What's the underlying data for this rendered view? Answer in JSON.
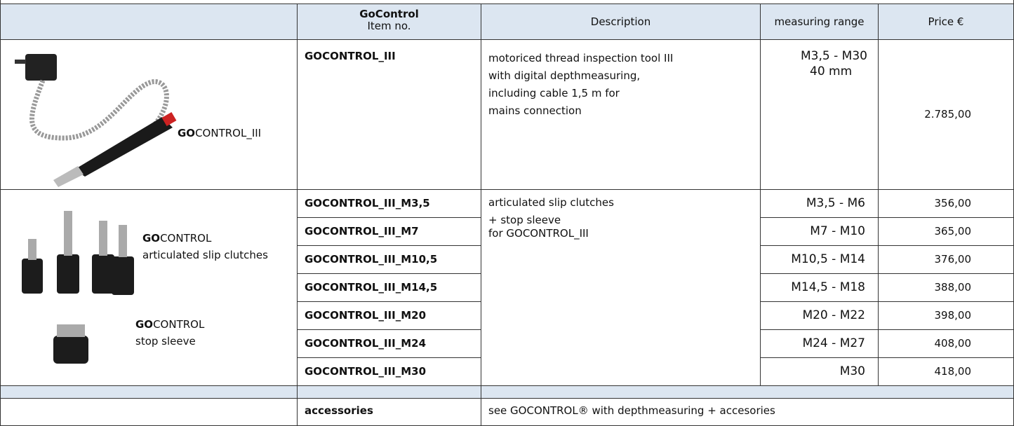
{
  "header": {
    "item_no_brand": "GoControl",
    "item_no": "Item no.",
    "description": "Description",
    "measuring_range": "measuring range",
    "price": "Price €"
  },
  "product": {
    "label_bold": "GO",
    "label": "CONTROL_III",
    "item_no": "GOCONTROL_III",
    "description": [
      "motoriced thread inspection tool III",
      "with digital depthmeasuring,",
      "including cable 1,5 m for",
      "mains connection"
    ],
    "measuring_range": [
      "M3,5 - M30",
      "40 mm"
    ],
    "price": "2.785,00"
  },
  "clutches": {
    "labels": [
      {
        "bold": "GO",
        "text": "CONTROL",
        "line2": "articulated slip clutches"
      },
      {
        "bold": "GO",
        "text": "CONTROL",
        "line2": "stop sleeve"
      }
    ],
    "description": [
      "articulated slip clutches",
      "+ stop sleeve",
      "for GOCONTROL_III"
    ],
    "items": [
      {
        "item_no": "GOCONTROL_III_M3,5",
        "measuring_range": "M3,5 - M6",
        "price": "356,00"
      },
      {
        "item_no": "GOCONTROL_III_M7",
        "measuring_range": "M7 - M10",
        "price": "365,00"
      },
      {
        "item_no": "GOCONTROL_III_M10,5",
        "measuring_range": "M10,5 - M14",
        "price": "376,00"
      },
      {
        "item_no": "GOCONTROL_III_M14,5",
        "measuring_range": "M14,5 - M18",
        "price": "388,00"
      },
      {
        "item_no": "GOCONTROL_III_M20",
        "measuring_range": "M20 - M22",
        "price": "398,00"
      },
      {
        "item_no": "GOCONTROL_III_M24",
        "measuring_range": "M24 - M27",
        "price": "408,00"
      },
      {
        "item_no": "GOCONTROL_III_M30",
        "measuring_range": "M30",
        "price": "418,00"
      }
    ]
  },
  "accessories": {
    "item_no": "accessories",
    "description": "see GOCONTROL® with depthmeasuring + accesories"
  }
}
